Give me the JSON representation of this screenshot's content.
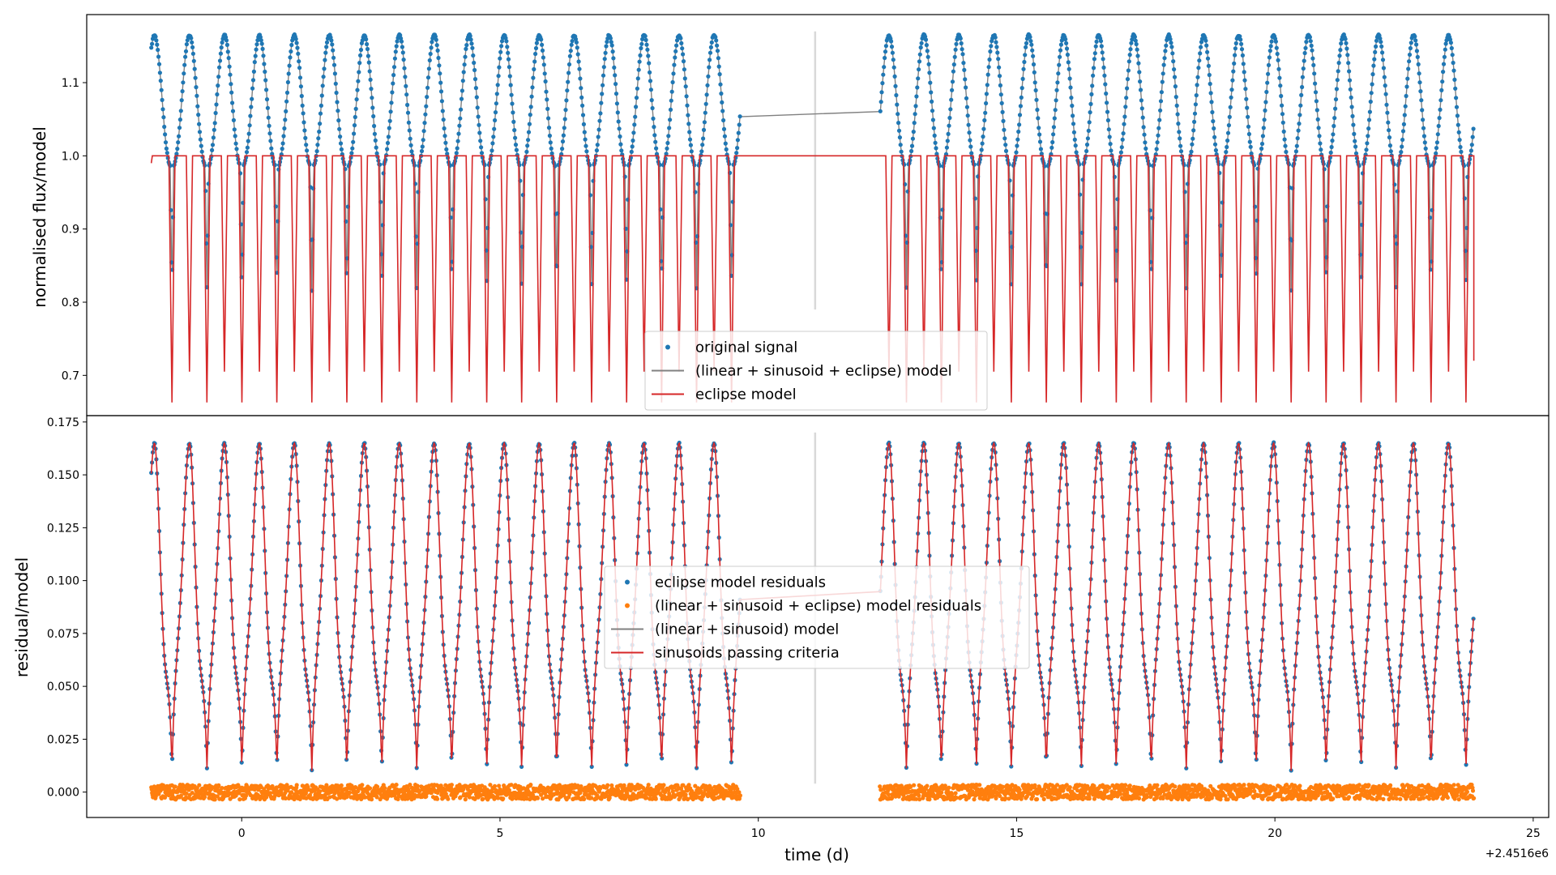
{
  "chart_data": [
    {
      "panel": "top",
      "type": "scatter",
      "ylabel": "normalised flux/model",
      "xlim": [
        -3.0,
        25.3
      ],
      "ylim": [
        0.645,
        1.193
      ],
      "yticks": [
        "0.7",
        "0.8",
        "0.9",
        "1.0",
        "1.1"
      ],
      "ytick_values": [
        0.7,
        0.8,
        0.9,
        1.0,
        1.1
      ],
      "x_offset_label": "+2.4516e6",
      "gaps": [
        [
          9.65,
          12.35
        ]
      ],
      "period": 0.677,
      "first_eclipse": -1.35,
      "eclipse_depth_primary": 0.663,
      "eclipse_depth_secondary": 0.705,
      "gap_divider_x": 11.1,
      "series": [
        {
          "name": "original signal",
          "color": "#1f77b4",
          "kind": "points",
          "description_range": [
            0.8,
            1.165
          ]
        },
        {
          "name": "(linear + sinusoid + eclipse) model",
          "color": "#808080",
          "kind": "line"
        },
        {
          "name": "eclipse model",
          "color": "#d62728",
          "kind": "line"
        }
      ],
      "legend": {
        "placement": "lower-center",
        "entries": [
          {
            "label": "original signal",
            "marker": "dot",
            "color": "#1f77b4"
          },
          {
            "label": "(linear + sinusoid + eclipse) model",
            "marker": "line",
            "color": "#808080"
          },
          {
            "label": "eclipse model",
            "marker": "line",
            "color": "#d62728"
          }
        ]
      }
    },
    {
      "panel": "bottom",
      "type": "scatter",
      "xlabel": "time (d)",
      "ylabel": "residual/model",
      "xlim": [
        -3.0,
        25.3
      ],
      "ylim": [
        -0.012,
        0.178
      ],
      "xticks": [
        "0",
        "5",
        "10",
        "15",
        "20",
        "25"
      ],
      "xtick_values": [
        0,
        5,
        10,
        15,
        20,
        25
      ],
      "yticks": [
        "0.000",
        "0.025",
        "0.050",
        "0.075",
        "0.100",
        "0.125",
        "0.150",
        "0.175"
      ],
      "ytick_values": [
        0.0,
        0.025,
        0.05,
        0.075,
        0.1,
        0.125,
        0.15,
        0.175
      ],
      "x_offset_label": "+2.4516e6",
      "series": [
        {
          "name": "eclipse model residuals",
          "color": "#1f77b4",
          "kind": "points",
          "description_range": [
            0.005,
            0.165
          ]
        },
        {
          "name": "(linear + sinusoid + eclipse) model residuals",
          "color": "#ff7f0e",
          "kind": "points",
          "description_range": [
            -0.004,
            0.004
          ]
        },
        {
          "name": "(linear + sinusoid) model",
          "color": "#808080",
          "kind": "line"
        },
        {
          "name": "sinusoids passing criteria",
          "color": "#d62728",
          "kind": "line"
        }
      ],
      "legend": {
        "placement": "center",
        "entries": [
          {
            "label": "eclipse model residuals",
            "marker": "dot",
            "color": "#1f77b4"
          },
          {
            "label": "(linear + sinusoid + eclipse) model residuals",
            "marker": "dot",
            "color": "#ff7f0e"
          },
          {
            "label": "(linear + sinusoid) model",
            "marker": "line",
            "color": "#808080"
          },
          {
            "label": "sinusoids passing criteria",
            "marker": "line",
            "color": "#d62728"
          }
        ]
      }
    }
  ]
}
